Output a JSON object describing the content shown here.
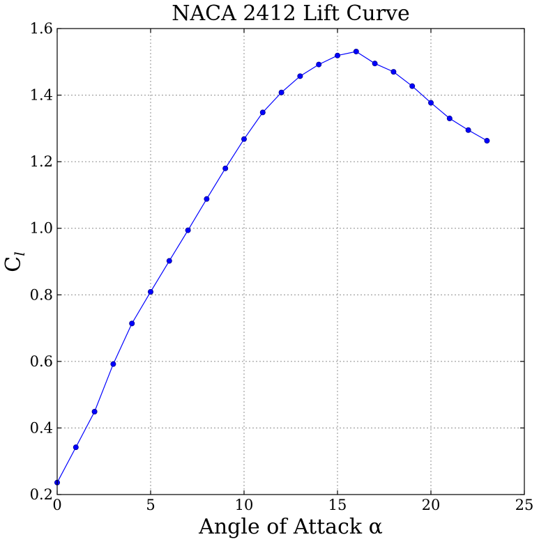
{
  "chart_data": {
    "type": "line",
    "title": "NACA 2412 Lift Curve",
    "xlabel": "Angle of Attack α",
    "ylabel_main": "C",
    "ylabel_sub": "l",
    "xlim": [
      0,
      25
    ],
    "ylim": [
      0.2,
      1.6
    ],
    "xticks": [
      0,
      5,
      10,
      15,
      20,
      25
    ],
    "xtick_labels": [
      "0",
      "5",
      "10",
      "15",
      "20",
      "25"
    ],
    "yticks": [
      0.2,
      0.4,
      0.6,
      0.8,
      1.0,
      1.2,
      1.4,
      1.6
    ],
    "ytick_labels": [
      "0.2",
      "0.4",
      "0.6",
      "0.8",
      "1.0",
      "1.2",
      "1.4",
      "1.6"
    ],
    "grid": true,
    "series": [
      {
        "color": "#0000ff",
        "marker": "circle",
        "x": [
          0,
          1,
          2,
          3,
          4,
          5,
          6,
          7,
          8,
          9,
          10,
          11,
          12,
          13,
          14,
          15,
          16,
          17,
          18,
          19,
          20,
          21,
          22,
          23
        ],
        "y": [
          0.236,
          0.342,
          0.449,
          0.592,
          0.714,
          0.809,
          0.902,
          0.994,
          1.088,
          1.18,
          1.268,
          1.348,
          1.408,
          1.457,
          1.492,
          1.519,
          1.531,
          1.495,
          1.47,
          1.427,
          1.377,
          1.33,
          1.295,
          1.263
        ]
      }
    ]
  }
}
